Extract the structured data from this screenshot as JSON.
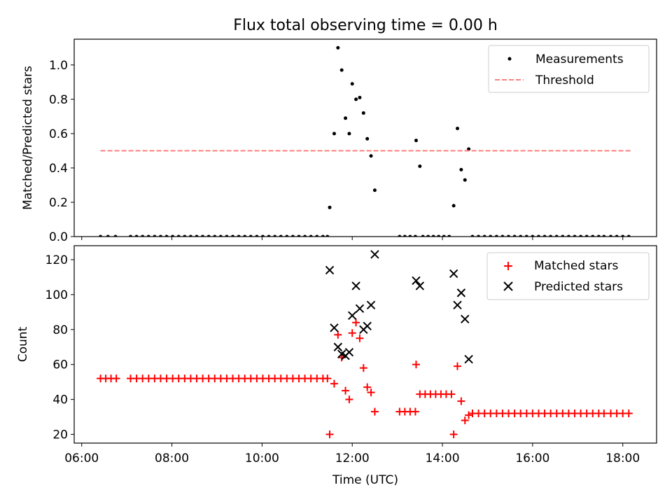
{
  "chart_data": [
    {
      "type": "scatter",
      "title": "Flux total observing time = 0.00 h",
      "ylabel": "Matched/Predicted stars",
      "xlim": [
        "05:50",
        "18:45"
      ],
      "ylim": [
        0,
        1.15
      ],
      "yticks": [
        "0.0",
        "0.2",
        "0.4",
        "0.6",
        "0.8",
        "1.0"
      ],
      "legend_position": "upper right",
      "grid": false,
      "series": [
        {
          "name": "Measurements",
          "marker": "dot",
          "color": "#000000",
          "points": [
            [
              "06:25",
              0
            ],
            [
              "06:35",
              0
            ],
            [
              "06:45",
              0
            ],
            [
              "07:05",
              0
            ],
            [
              "07:13",
              0
            ],
            [
              "07:21",
              0
            ],
            [
              "07:29",
              0
            ],
            [
              "07:37",
              0
            ],
            [
              "07:45",
              0
            ],
            [
              "07:53",
              0
            ],
            [
              "08:01",
              0
            ],
            [
              "08:09",
              0
            ],
            [
              "08:17",
              0
            ],
            [
              "08:25",
              0
            ],
            [
              "08:33",
              0
            ],
            [
              "08:41",
              0
            ],
            [
              "08:49",
              0
            ],
            [
              "08:57",
              0
            ],
            [
              "09:05",
              0
            ],
            [
              "09:13",
              0
            ],
            [
              "09:21",
              0
            ],
            [
              "09:29",
              0
            ],
            [
              "09:37",
              0
            ],
            [
              "09:45",
              0
            ],
            [
              "09:53",
              0
            ],
            [
              "10:01",
              0
            ],
            [
              "10:09",
              0
            ],
            [
              "10:17",
              0
            ],
            [
              "10:25",
              0
            ],
            [
              "10:33",
              0
            ],
            [
              "10:41",
              0
            ],
            [
              "10:49",
              0
            ],
            [
              "10:57",
              0
            ],
            [
              "11:05",
              0
            ],
            [
              "11:13",
              0
            ],
            [
              "11:21",
              0
            ],
            [
              "11:27",
              0
            ],
            [
              "11:30",
              0.17
            ],
            [
              "11:36",
              0.6
            ],
            [
              "11:41",
              1.1
            ],
            [
              "11:46",
              0.97
            ],
            [
              "11:51",
              0.69
            ],
            [
              "11:56",
              0.6
            ],
            [
              "12:00",
              0.89
            ],
            [
              "12:05",
              0.8
            ],
            [
              "12:10",
              0.81
            ],
            [
              "12:15",
              0.72
            ],
            [
              "12:20",
              0.57
            ],
            [
              "12:25",
              0.47
            ],
            [
              "12:30",
              0.27
            ],
            [
              "13:03",
              0
            ],
            [
              "13:10",
              0
            ],
            [
              "13:17",
              0
            ],
            [
              "13:24",
              0
            ],
            [
              "13:25",
              0.56
            ],
            [
              "13:30",
              0.41
            ],
            [
              "13:34",
              0
            ],
            [
              "13:41",
              0
            ],
            [
              "13:48",
              0
            ],
            [
              "13:55",
              0
            ],
            [
              "14:02",
              0
            ],
            [
              "14:09",
              0
            ],
            [
              "14:15",
              0.18
            ],
            [
              "14:20",
              0.63
            ],
            [
              "14:25",
              0.39
            ],
            [
              "14:30",
              0.33
            ],
            [
              "14:35",
              0.51
            ],
            [
              "14:40",
              0
            ],
            [
              "14:48",
              0
            ],
            [
              "14:56",
              0
            ],
            [
              "15:04",
              0
            ],
            [
              "15:12",
              0
            ],
            [
              "15:20",
              0
            ],
            [
              "15:28",
              0
            ],
            [
              "15:36",
              0
            ],
            [
              "15:44",
              0
            ],
            [
              "15:52",
              0
            ],
            [
              "16:00",
              0
            ],
            [
              "16:08",
              0
            ],
            [
              "16:16",
              0
            ],
            [
              "16:24",
              0
            ],
            [
              "16:32",
              0
            ],
            [
              "16:40",
              0
            ],
            [
              "16:48",
              0
            ],
            [
              "16:56",
              0
            ],
            [
              "17:04",
              0
            ],
            [
              "17:12",
              0
            ],
            [
              "17:20",
              0
            ],
            [
              "17:28",
              0
            ],
            [
              "17:35",
              0
            ],
            [
              "17:44",
              0
            ],
            [
              "17:52",
              0
            ],
            [
              "18:00",
              0
            ],
            [
              "18:08",
              0
            ]
          ]
        },
        {
          "name": "Threshold",
          "style": "dashed",
          "color": "#ff7f7f",
          "points": [
            [
              "06:25",
              0.5
            ],
            [
              "18:13",
              0.5
            ]
          ]
        }
      ]
    },
    {
      "type": "scatter",
      "xlabel": "Time (UTC)",
      "ylabel": "Count",
      "xlim": [
        "05:50",
        "18:45"
      ],
      "ylim": [
        15,
        128
      ],
      "xticks": [
        "06:00",
        "08:00",
        "10:00",
        "12:00",
        "14:00",
        "16:00",
        "18:00"
      ],
      "yticks": [
        "20",
        "40",
        "60",
        "80",
        "100",
        "120"
      ],
      "legend_position": "upper right",
      "grid": false,
      "series": [
        {
          "name": "Matched stars",
          "marker": "plus",
          "color": "#ff0000",
          "points": [
            [
              "06:25",
              52
            ],
            [
              "06:32",
              52
            ],
            [
              "06:39",
              52
            ],
            [
              "06:46",
              52
            ],
            [
              "07:05",
              52
            ],
            [
              "07:13",
              52
            ],
            [
              "07:21",
              52
            ],
            [
              "07:29",
              52
            ],
            [
              "07:37",
              52
            ],
            [
              "07:45",
              52
            ],
            [
              "07:53",
              52
            ],
            [
              "08:01",
              52
            ],
            [
              "08:09",
              52
            ],
            [
              "08:17",
              52
            ],
            [
              "08:25",
              52
            ],
            [
              "08:33",
              52
            ],
            [
              "08:41",
              52
            ],
            [
              "08:49",
              52
            ],
            [
              "08:57",
              52
            ],
            [
              "09:05",
              52
            ],
            [
              "09:13",
              52
            ],
            [
              "09:21",
              52
            ],
            [
              "09:29",
              52
            ],
            [
              "09:37",
              52
            ],
            [
              "09:45",
              52
            ],
            [
              "09:53",
              52
            ],
            [
              "10:01",
              52
            ],
            [
              "10:09",
              52
            ],
            [
              "10:17",
              52
            ],
            [
              "10:25",
              52
            ],
            [
              "10:33",
              52
            ],
            [
              "10:41",
              52
            ],
            [
              "10:49",
              52
            ],
            [
              "10:57",
              52
            ],
            [
              "11:05",
              52
            ],
            [
              "11:13",
              52
            ],
            [
              "11:21",
              52
            ],
            [
              "11:27",
              52
            ],
            [
              "11:30",
              20
            ],
            [
              "11:36",
              49
            ],
            [
              "11:41",
              77
            ],
            [
              "11:46",
              64
            ],
            [
              "11:51",
              45
            ],
            [
              "11:56",
              40
            ],
            [
              "12:00",
              78
            ],
            [
              "12:05",
              84
            ],
            [
              "12:10",
              75
            ],
            [
              "12:15",
              58
            ],
            [
              "12:20",
              47
            ],
            [
              "12:25",
              44
            ],
            [
              "12:30",
              33
            ],
            [
              "13:03",
              33
            ],
            [
              "13:10",
              33
            ],
            [
              "13:17",
              33
            ],
            [
              "13:24",
              33
            ],
            [
              "13:25",
              60
            ],
            [
              "13:30",
              43
            ],
            [
              "13:37",
              43
            ],
            [
              "13:44",
              43
            ],
            [
              "13:51",
              43
            ],
            [
              "13:58",
              43
            ],
            [
              "14:05",
              43
            ],
            [
              "14:12",
              43
            ],
            [
              "14:15",
              20
            ],
            [
              "14:20",
              59
            ],
            [
              "14:25",
              39
            ],
            [
              "14:30",
              28
            ],
            [
              "14:35",
              31
            ],
            [
              "14:40",
              32
            ],
            [
              "14:48",
              32
            ],
            [
              "14:56",
              32
            ],
            [
              "15:04",
              32
            ],
            [
              "15:12",
              32
            ],
            [
              "15:20",
              32
            ],
            [
              "15:28",
              32
            ],
            [
              "15:36",
              32
            ],
            [
              "15:44",
              32
            ],
            [
              "15:52",
              32
            ],
            [
              "16:00",
              32
            ],
            [
              "16:08",
              32
            ],
            [
              "16:16",
              32
            ],
            [
              "16:24",
              32
            ],
            [
              "16:32",
              32
            ],
            [
              "16:40",
              32
            ],
            [
              "16:48",
              32
            ],
            [
              "16:56",
              32
            ],
            [
              "17:04",
              32
            ],
            [
              "17:12",
              32
            ],
            [
              "17:20",
              32
            ],
            [
              "17:28",
              32
            ],
            [
              "17:35",
              32
            ],
            [
              "17:44",
              32
            ],
            [
              "17:52",
              32
            ],
            [
              "18:00",
              32
            ],
            [
              "18:08",
              32
            ]
          ]
        },
        {
          "name": "Predicted stars",
          "marker": "x",
          "color": "#000000",
          "points": [
            [
              "11:30",
              114
            ],
            [
              "11:36",
              81
            ],
            [
              "11:41",
              70
            ],
            [
              "11:46",
              66
            ],
            [
              "11:51",
              65
            ],
            [
              "11:56",
              67
            ],
            [
              "12:00",
              88
            ],
            [
              "12:05",
              105
            ],
            [
              "12:10",
              92
            ],
            [
              "12:15",
              80
            ],
            [
              "12:20",
              82
            ],
            [
              "12:25",
              94
            ],
            [
              "12:30",
              123
            ],
            [
              "13:25",
              108
            ],
            [
              "13:30",
              105
            ],
            [
              "14:15",
              112
            ],
            [
              "14:20",
              94
            ],
            [
              "14:25",
              101
            ],
            [
              "14:30",
              86
            ],
            [
              "14:35",
              63
            ]
          ]
        }
      ]
    }
  ]
}
